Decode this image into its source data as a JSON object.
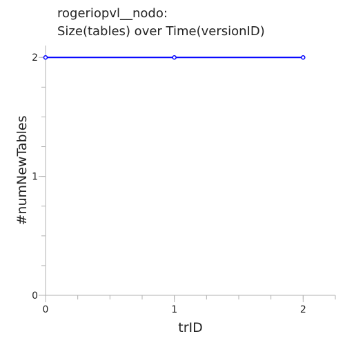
{
  "chart_data": {
    "type": "line",
    "title_lines": [
      "rogeriopvl__nodo:",
      "Size(tables) over Time(versionID)"
    ],
    "xlabel": "trID",
    "ylabel": "#numNewTables",
    "xlim": [
      0,
      2.25
    ],
    "ylim": [
      0,
      2.1
    ],
    "x_ticks": [
      0,
      1,
      2
    ],
    "x_tick_labels": [
      "0",
      "1",
      "2"
    ],
    "y_ticks": [
      0,
      1,
      2
    ],
    "y_tick_labels": [
      "0",
      "1",
      "2"
    ],
    "series": [
      {
        "x": [
          0,
          1,
          2
        ],
        "values": [
          2,
          2,
          2
        ],
        "color": "#0000ff",
        "markers": true
      }
    ],
    "grid": false,
    "legend": "none"
  }
}
